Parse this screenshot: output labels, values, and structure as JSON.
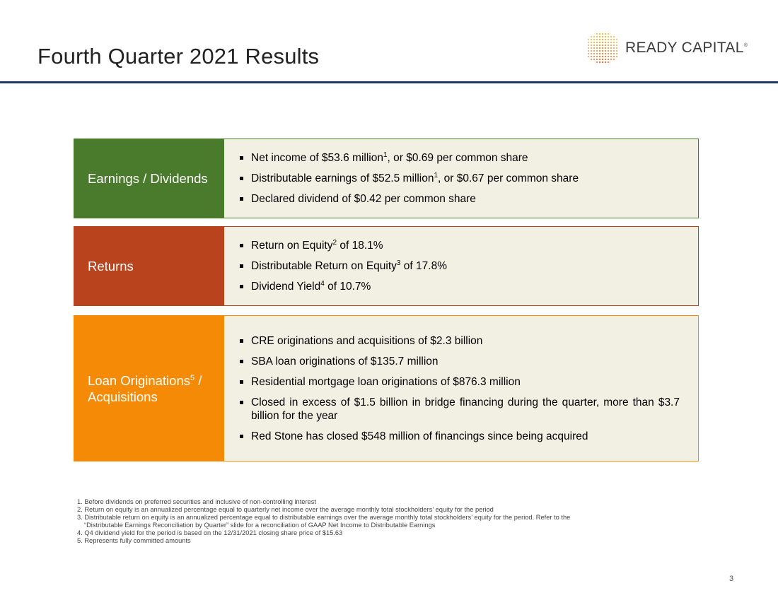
{
  "slide": {
    "title": "Fourth Quarter 2021 Results",
    "page_number": "3"
  },
  "logo": {
    "text": "READY CAPITAL",
    "mark": "®",
    "icon": "dot-grid-logo-icon"
  },
  "colors": {
    "header_rule": "#1f3864",
    "earnings": "#4a7a2c",
    "returns": "#b8431d",
    "loans": "#f58a07",
    "panel_bg": "#f2efe3"
  },
  "earnings": {
    "label": "Earnings / Dividends",
    "bullets": [
      {
        "pre": "Net income of $53.6 million",
        "sup": "1",
        "post": ", or $0.69 per common share"
      },
      {
        "pre": "Distributable earnings of $52.5 million",
        "sup": "1",
        "post": ", or $0.67 per common share"
      },
      {
        "pre": "Declared dividend of $0.42 per common share",
        "sup": "",
        "post": ""
      }
    ]
  },
  "returns": {
    "label": "Returns",
    "bullets": [
      {
        "pre": "Return on Equity",
        "sup": "2",
        "post": " of 18.1%"
      },
      {
        "pre": "Distributable Return on Equity",
        "sup": "3",
        "post": " of 17.8%"
      },
      {
        "pre": "Dividend Yield",
        "sup": "4",
        "post": " of 10.7%"
      }
    ]
  },
  "loans": {
    "label_line1": "Loan Originations",
    "label_sup": "5",
    "label_line1_post": " /",
    "label_line2": "Acquisitions",
    "bullets": [
      {
        "pre": "CRE originations and acquisitions of $2.3 billion",
        "sup": "",
        "post": ""
      },
      {
        "pre": "SBA loan originations of $135.7 million",
        "sup": "",
        "post": ""
      },
      {
        "pre": "Residential mortgage loan originations of $876.3 million",
        "sup": "",
        "post": ""
      },
      {
        "pre": "Closed in excess of $1.5 billion in bridge financing during the quarter, more than $3.7 billion for the year",
        "sup": "",
        "post": ""
      },
      {
        "pre": "Red Stone has closed $548 million of financings since being acquired",
        "sup": "",
        "post": ""
      }
    ]
  },
  "footnotes": [
    "1. Before dividends on preferred securities and inclusive of non-controlling interest",
    "2. Return on equity is an annualized percentage equal to quarterly net income over the average monthly total stockholders’ equity for the period",
    "3. Distributable return on equity is an annualized percentage equal to distributable earnings over the average monthly total stockholders’ equity for the period. Refer to the",
    "“Distributable Earnings Reconciliation by Quarter” slide for a reconciliation of GAAP Net Income to Distributable Earnings",
    "4. Q4 dividend yield for the period is based on the 12/31/2021 closing share price of $15.63",
    "5. Represents fully committed amounts"
  ]
}
